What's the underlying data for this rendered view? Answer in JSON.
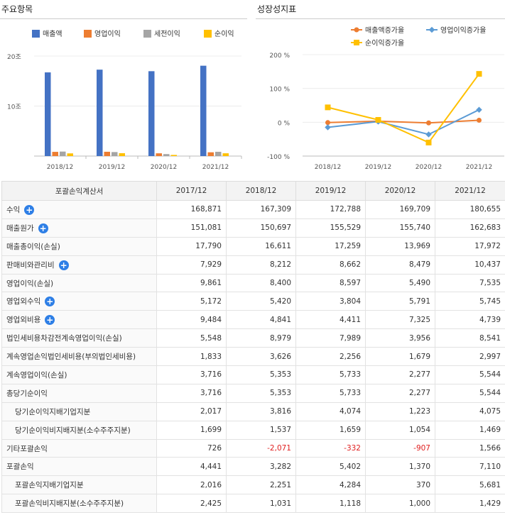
{
  "titles": {
    "left": "주요항목",
    "right": "성장성지표"
  },
  "chart_data": [
    {
      "type": "bar",
      "categories": [
        "2018/12",
        "2019/12",
        "2020/12",
        "2021/12"
      ],
      "y_ticks": [
        "20조",
        "10조"
      ],
      "series": [
        {
          "name": "매출액",
          "color": "#4472c4",
          "values": [
            167309,
            172788,
            169709,
            180655
          ]
        },
        {
          "name": "영업이익",
          "color": "#ed7d31",
          "values": [
            8400,
            8597,
            5490,
            7535
          ]
        },
        {
          "name": "세전이익",
          "color": "#a5a5a5",
          "values": [
            8979,
            7989,
            3956,
            8541
          ]
        },
        {
          "name": "순이익",
          "color": "#ffc000",
          "values": [
            5353,
            5733,
            2277,
            5544
          ]
        }
      ],
      "ylim": [
        0,
        200000
      ]
    },
    {
      "type": "line",
      "categories": [
        "2018/12",
        "2019/12",
        "2020/12",
        "2021/12"
      ],
      "y_ticks": [
        "200 %",
        "100 %",
        "0 %",
        "-100 %"
      ],
      "series": [
        {
          "name": "매출액증가율",
          "color": "#ed7d31",
          "values": [
            -1,
            3,
            -2,
            6
          ]
        },
        {
          "name": "영업이익증가율",
          "color": "#5b9bd5",
          "values": [
            -15,
            2,
            -36,
            37
          ]
        },
        {
          "name": "순이익증가율",
          "color": "#ffc000",
          "values": [
            44,
            7,
            -60,
            143
          ]
        }
      ],
      "ylim": [
        -100,
        200
      ]
    }
  ],
  "table": {
    "header": [
      "포괄손익계산서",
      "2017/12",
      "2018/12",
      "2019/12",
      "2020/12",
      "2021/12"
    ],
    "rows": [
      {
        "label": "수익",
        "plus": true,
        "sub": false,
        "values": [
          "168,871",
          "167,309",
          "172,788",
          "169,709",
          "180,655"
        ]
      },
      {
        "label": "매출원가",
        "plus": true,
        "sub": false,
        "values": [
          "151,081",
          "150,697",
          "155,529",
          "155,740",
          "162,683"
        ]
      },
      {
        "label": "매출총이익(손실)",
        "plus": false,
        "sub": false,
        "values": [
          "17,790",
          "16,611",
          "17,259",
          "13,969",
          "17,972"
        ]
      },
      {
        "label": "판매비와관리비",
        "plus": true,
        "sub": false,
        "values": [
          "7,929",
          "8,212",
          "8,662",
          "8,479",
          "10,437"
        ]
      },
      {
        "label": "영업이익(손실)",
        "plus": false,
        "sub": false,
        "values": [
          "9,861",
          "8,400",
          "8,597",
          "5,490",
          "7,535"
        ]
      },
      {
        "label": "영업외수익",
        "plus": true,
        "sub": false,
        "values": [
          "5,172",
          "5,420",
          "3,804",
          "5,791",
          "5,745"
        ]
      },
      {
        "label": "영업외비용",
        "plus": true,
        "sub": false,
        "values": [
          "9,484",
          "4,841",
          "4,411",
          "7,325",
          "4,739"
        ]
      },
      {
        "label": "법인세비용차감전계속영업이익(손실)",
        "plus": false,
        "sub": false,
        "values": [
          "5,548",
          "8,979",
          "7,989",
          "3,956",
          "8,541"
        ]
      },
      {
        "label": "계속영업손익법인세비용(부의법인세비용)",
        "plus": false,
        "sub": false,
        "values": [
          "1,833",
          "3,626",
          "2,256",
          "1,679",
          "2,997"
        ]
      },
      {
        "label": "계속영업이익(손실)",
        "plus": false,
        "sub": false,
        "values": [
          "3,716",
          "5,353",
          "5,733",
          "2,277",
          "5,544"
        ]
      },
      {
        "label": "총당기순이익",
        "plus": false,
        "sub": false,
        "values": [
          "3,716",
          "5,353",
          "5,733",
          "2,277",
          "5,544"
        ]
      },
      {
        "label": "당기순이익지배기업지분",
        "plus": false,
        "sub": true,
        "values": [
          "2,017",
          "3,816",
          "4,074",
          "1,223",
          "4,075"
        ]
      },
      {
        "label": "당기순이익비지배지분(소수주주지분)",
        "plus": false,
        "sub": true,
        "values": [
          "1,699",
          "1,537",
          "1,659",
          "1,054",
          "1,469"
        ]
      },
      {
        "label": "기타포괄손익",
        "plus": false,
        "sub": false,
        "values": [
          "726",
          "-2,071",
          "-332",
          "-907",
          "1,566"
        ]
      },
      {
        "label": "포괄손익",
        "plus": false,
        "sub": false,
        "values": [
          "4,441",
          "3,282",
          "5,402",
          "1,370",
          "7,110"
        ]
      },
      {
        "label": "포괄손익지배기업지분",
        "plus": false,
        "sub": true,
        "values": [
          "2,016",
          "2,251",
          "4,284",
          "370",
          "5,681"
        ]
      },
      {
        "label": "포괄손익비지배지분(소수주주지분)",
        "plus": false,
        "sub": true,
        "values": [
          "2,425",
          "1,031",
          "1,118",
          "1,000",
          "1,429"
        ]
      }
    ]
  }
}
